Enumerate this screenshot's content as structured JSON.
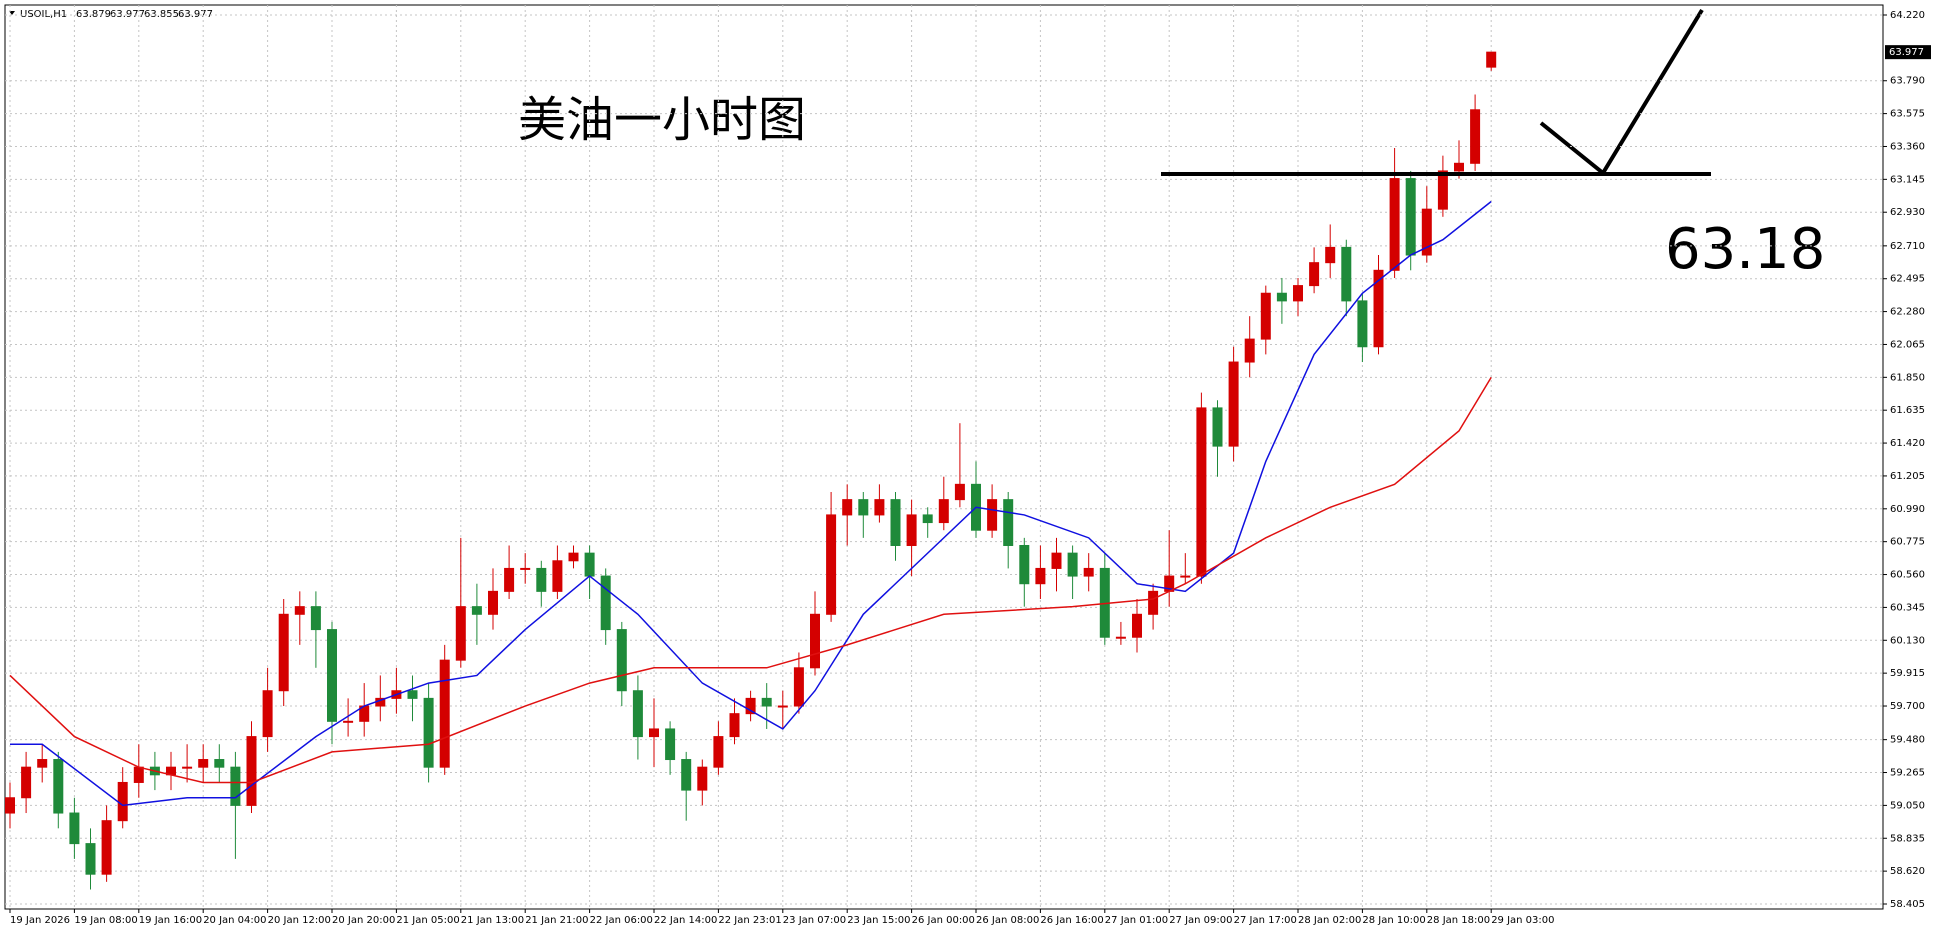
{
  "chart_data": {
    "type": "candlestick",
    "symbol": "USOIL,H1",
    "annotation": "美油一小时图",
    "level": 63.18,
    "up_color": "#d40000",
    "down_color": "#1f8a3a",
    "grid": true,
    "categories": [
      "19 Jan 2026",
      null,
      null,
      null,
      "19 Jan 08:00",
      null,
      null,
      null,
      "19 Jan 16:00",
      null,
      null,
      null,
      "20 Jan 04:00",
      null,
      null,
      null,
      "20 Jan 12:00",
      null,
      null,
      null,
      "20 Jan 20:00",
      null,
      null,
      null,
      "21 Jan 05:00",
      null,
      null,
      null,
      "21 Jan 13:00",
      null,
      null,
      null,
      "21 Jan 21:00",
      null,
      null,
      null,
      "22 Jan 06:00",
      null,
      null,
      null,
      "22 Jan 14:00",
      null,
      null,
      null,
      "22 Jan 23:01",
      null,
      null,
      null,
      "23 Jan 07:00",
      null,
      null,
      null,
      "23 Jan 15:00",
      null,
      null,
      null,
      "26 Jan 00:00",
      null,
      null,
      null,
      "26 Jan 08:00",
      null,
      null,
      null,
      "26 Jan 16:00",
      null,
      null,
      null,
      "27 Jan 01:00",
      null,
      null,
      null,
      "27 Jan 09:00",
      null,
      null,
      null,
      "27 Jan 17:00",
      null,
      null,
      null,
      "28 Jan 02:00",
      null,
      null,
      null,
      "28 Jan 10:00",
      null,
      null,
      null,
      "28 Jan 18:00",
      null,
      null,
      null,
      "29 Jan 03:00"
    ],
    "open": [
      59.0,
      59.1,
      59.3,
      59.35,
      59.0,
      58.8,
      58.6,
      58.95,
      59.2,
      59.3,
      59.25,
      59.3,
      59.3,
      59.35,
      59.3,
      59.05,
      59.5,
      59.8,
      60.3,
      60.35,
      60.2,
      59.6,
      59.6,
      59.7,
      59.75,
      59.8,
      59.75,
      59.3,
      60.0,
      60.35,
      60.3,
      60.45,
      60.6,
      60.6,
      60.45,
      60.65,
      60.7,
      60.55,
      60.2,
      59.8,
      59.5,
      59.55,
      59.35,
      59.15,
      59.3,
      59.5,
      59.65,
      59.75,
      59.7,
      59.7,
      59.95,
      60.3,
      60.95,
      61.05,
      60.95,
      61.05,
      60.75,
      60.95,
      60.9,
      61.05,
      61.15,
      60.85,
      61.05,
      60.75,
      60.5,
      60.6,
      60.7,
      60.55,
      60.6,
      60.15,
      60.15,
      60.3,
      60.45,
      60.55,
      60.55,
      61.65,
      61.4,
      61.95,
      62.1,
      62.4,
      62.35,
      62.45,
      62.6,
      62.7,
      62.35,
      62.05,
      62.55,
      63.15,
      62.65,
      62.95,
      63.2,
      63.25,
      63.879
    ],
    "high": [
      59.2,
      59.4,
      59.45,
      59.4,
      59.1,
      58.9,
      59.05,
      59.3,
      59.45,
      59.4,
      59.4,
      59.45,
      59.45,
      59.45,
      59.4,
      59.6,
      59.95,
      60.4,
      60.45,
      60.45,
      60.25,
      59.75,
      59.85,
      59.9,
      59.95,
      59.9,
      59.85,
      60.1,
      60.8,
      60.5,
      60.6,
      60.75,
      60.7,
      60.65,
      60.75,
      60.75,
      60.75,
      60.6,
      60.25,
      59.9,
      59.75,
      59.6,
      59.4,
      59.35,
      59.6,
      59.75,
      59.8,
      59.85,
      59.8,
      60.05,
      60.45,
      61.1,
      61.15,
      61.1,
      61.15,
      61.1,
      61.05,
      61.0,
      61.2,
      61.55,
      61.3,
      61.15,
      61.1,
      60.8,
      60.75,
      60.8,
      60.75,
      60.7,
      60.7,
      60.25,
      60.4,
      60.5,
      60.85,
      60.7,
      61.75,
      61.7,
      62.05,
      62.25,
      62.45,
      62.5,
      62.5,
      62.7,
      62.85,
      62.75,
      62.4,
      62.65,
      63.35,
      63.2,
      63.1,
      63.3,
      63.4,
      63.7,
      63.977
    ],
    "low": [
      58.9,
      59.0,
      59.2,
      58.9,
      58.7,
      58.5,
      58.55,
      58.9,
      59.1,
      59.15,
      59.15,
      59.2,
      59.2,
      59.2,
      58.7,
      59.0,
      59.4,
      59.7,
      60.1,
      59.95,
      59.45,
      59.5,
      59.5,
      59.6,
      59.65,
      59.6,
      59.2,
      59.25,
      59.95,
      60.1,
      60.2,
      60.4,
      60.5,
      60.35,
      60.4,
      60.6,
      60.4,
      60.1,
      59.7,
      59.35,
      59.3,
      59.25,
      58.95,
      59.05,
      59.25,
      59.45,
      59.6,
      59.55,
      59.55,
      59.65,
      59.9,
      60.25,
      60.75,
      60.8,
      60.9,
      60.65,
      60.55,
      60.8,
      60.85,
      61.0,
      60.8,
      60.8,
      60.6,
      60.35,
      60.4,
      60.45,
      60.4,
      60.45,
      60.1,
      60.1,
      60.05,
      60.2,
      60.35,
      60.5,
      60.5,
      61.2,
      61.3,
      61.85,
      62.0,
      62.2,
      62.25,
      62.4,
      62.5,
      62.25,
      61.95,
      62.0,
      62.5,
      62.55,
      62.6,
      62.9,
      63.15,
      63.2,
      63.855
    ],
    "close": [
      59.1,
      59.3,
      59.35,
      59.0,
      58.8,
      58.6,
      58.95,
      59.2,
      59.3,
      59.25,
      59.3,
      59.3,
      59.35,
      59.3,
      59.05,
      59.5,
      59.8,
      60.3,
      60.35,
      60.2,
      59.6,
      59.6,
      59.7,
      59.75,
      59.8,
      59.75,
      59.3,
      60.0,
      60.35,
      60.3,
      60.45,
      60.6,
      60.6,
      60.45,
      60.65,
      60.7,
      60.55,
      60.2,
      59.8,
      59.5,
      59.55,
      59.35,
      59.15,
      59.3,
      59.5,
      59.65,
      59.75,
      59.7,
      59.7,
      59.95,
      60.3,
      60.95,
      61.05,
      60.95,
      61.05,
      60.75,
      60.95,
      60.9,
      61.05,
      61.15,
      60.85,
      61.05,
      60.75,
      60.5,
      60.6,
      60.7,
      60.55,
      60.6,
      60.15,
      60.15,
      60.3,
      60.45,
      60.55,
      60.55,
      61.65,
      61.4,
      61.95,
      62.1,
      62.4,
      62.35,
      62.45,
      62.6,
      62.7,
      62.35,
      62.05,
      62.55,
      63.15,
      62.65,
      62.95,
      63.2,
      63.25,
      63.6,
      63.977
    ],
    "lines": [
      {
        "color": "#1010e0",
        "x": [
          0,
          2,
          7,
          11,
          14,
          19,
          22,
          26,
          29,
          32,
          36,
          39,
          43,
          48,
          50,
          53,
          57,
          60,
          63,
          67,
          70,
          73,
          76,
          78,
          81,
          84,
          87,
          89,
          92
        ],
        "values": [
          59.45,
          59.45,
          59.05,
          59.1,
          59.1,
          59.5,
          59.7,
          59.85,
          59.9,
          60.2,
          60.55,
          60.3,
          59.85,
          59.55,
          59.8,
          60.3,
          60.7,
          61.0,
          60.95,
          60.8,
          60.5,
          60.45,
          60.7,
          61.3,
          62.0,
          62.4,
          62.65,
          62.75,
          63.0
        ]
      },
      {
        "color": "#e01010",
        "x": [
          0,
          4,
          8,
          12,
          15,
          20,
          26,
          32,
          36,
          40,
          47,
          52,
          58,
          66,
          71,
          73,
          78,
          82,
          86,
          90,
          92
        ],
        "values": [
          59.9,
          59.5,
          59.3,
          59.2,
          59.2,
          59.4,
          59.45,
          59.7,
          59.85,
          59.95,
          59.95,
          60.1,
          60.3,
          60.35,
          60.4,
          60.5,
          60.8,
          61.0,
          61.15,
          61.5,
          61.85
        ]
      }
    ],
    "ylim": [
      58.405,
      64.22
    ],
    "yticks": [
      {
        "value": 64.22,
        "label": "64.220"
      },
      {
        "value": 63.79,
        "label": "63.790"
      },
      63.575,
      {
        "value": 63.36,
        "label": "63.360"
      },
      63.145,
      {
        "value": 62.93,
        "label": "62.930"
      },
      {
        "value": 62.71,
        "label": "62.710"
      },
      62.495,
      {
        "value": 62.28,
        "label": "62.280"
      },
      62.065,
      {
        "value": 61.85,
        "label": "61.850"
      },
      61.635,
      {
        "value": 61.42,
        "label": "61.420"
      },
      61.205,
      {
        "value": 60.99,
        "label": "60.990"
      },
      60.775,
      {
        "value": 60.56,
        "label": "60.560"
      },
      60.345,
      {
        "value": 60.13,
        "label": "60.130"
      },
      59.915,
      {
        "value": 59.7,
        "label": "59.700"
      },
      {
        "value": 59.48,
        "label": "59.480"
      },
      59.265,
      {
        "value": 59.05,
        "label": "59.050"
      },
      58.835,
      {
        "value": 58.62,
        "label": "58.620"
      },
      58.405
    ]
  }
}
